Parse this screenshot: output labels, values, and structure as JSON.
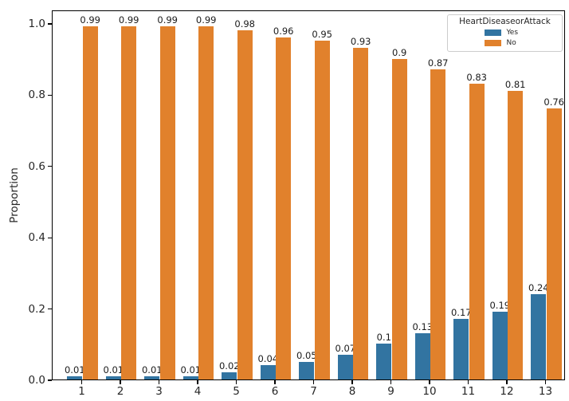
{
  "chart_data": {
    "type": "bar",
    "title": "",
    "xlabel": "",
    "ylabel": "Proportion",
    "categories": [
      "1",
      "2",
      "3",
      "4",
      "5",
      "6",
      "7",
      "8",
      "9",
      "10",
      "11",
      "12",
      "13"
    ],
    "series": [
      {
        "name": "Yes",
        "color": "#3274a1",
        "values": [
          0.01,
          0.01,
          0.01,
          0.01,
          0.02,
          0.04,
          0.05,
          0.07,
          0.1,
          0.13,
          0.17,
          0.19,
          0.24
        ]
      },
      {
        "name": "No",
        "color": "#e1812c",
        "values": [
          0.99,
          0.99,
          0.99,
          0.99,
          0.98,
          0.96,
          0.95,
          0.93,
          0.9,
          0.87,
          0.83,
          0.81,
          0.76
        ]
      }
    ],
    "bar_labels_shown": true,
    "y_ticks": [
      0.0,
      0.2,
      0.4,
      0.6,
      0.8,
      1.0
    ],
    "y_tick_labels": [
      "0.0",
      "0.2",
      "0.4",
      "0.6",
      "0.8",
      "1.0"
    ],
    "ylim": [
      0.0,
      1.038
    ],
    "grid": false,
    "legend": {
      "title": "HeartDiseaseorAttack",
      "entries": [
        "Yes",
        "No"
      ],
      "position": "upper right"
    }
  }
}
